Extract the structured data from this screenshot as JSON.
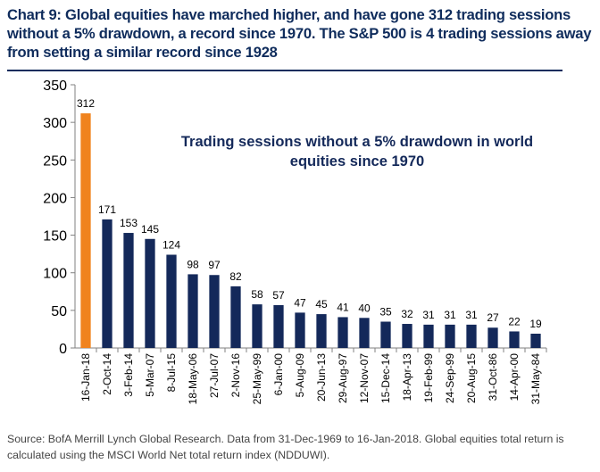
{
  "title": "Chart 9: Global equities have marched higher, and have gone 312 trading sessions without a 5% drawdown, a record since 1970. The S&P 500 is 4 trading sessions away from setting a similar record since 1928",
  "source": "Source: BofA Merrill Lynch Global Research. Data from 31-Dec-1969 to 16-Jan-2018. Global equities total return is calculated using the MSCI World Net total return index (NDDUWI).",
  "chart_data": {
    "type": "bar",
    "annotation": [
      "Trading sessions without a 5% drawdown in world",
      "equities since 1970"
    ],
    "categories": [
      "16-Jan-18",
      "2-Oct-14",
      "3-Feb-14",
      "5-Mar-07",
      "8-Jul-15",
      "18-May-06",
      "27-Jul-07",
      "2-Nov-16",
      "25-May-99",
      "6-Jan-00",
      "5-Aug-09",
      "20-Jun-13",
      "29-Aug-97",
      "12-Nov-07",
      "15-Dec-14",
      "18-Apr-13",
      "19-Feb-99",
      "24-Sep-99",
      "20-Aug-15",
      "31-Oct-86",
      "14-Apr-00",
      "31-May-84"
    ],
    "values": [
      312,
      171,
      153,
      145,
      124,
      98,
      97,
      82,
      58,
      57,
      47,
      45,
      41,
      40,
      35,
      32,
      31,
      31,
      31,
      27,
      22,
      19
    ],
    "highlight_index": 0,
    "highlight_color": "#f0831e",
    "bar_color": "#14295a",
    "ylim": [
      0,
      350
    ],
    "yticks": [
      0,
      50,
      100,
      150,
      200,
      250,
      300,
      350
    ],
    "grid": false,
    "data_labels": true
  }
}
